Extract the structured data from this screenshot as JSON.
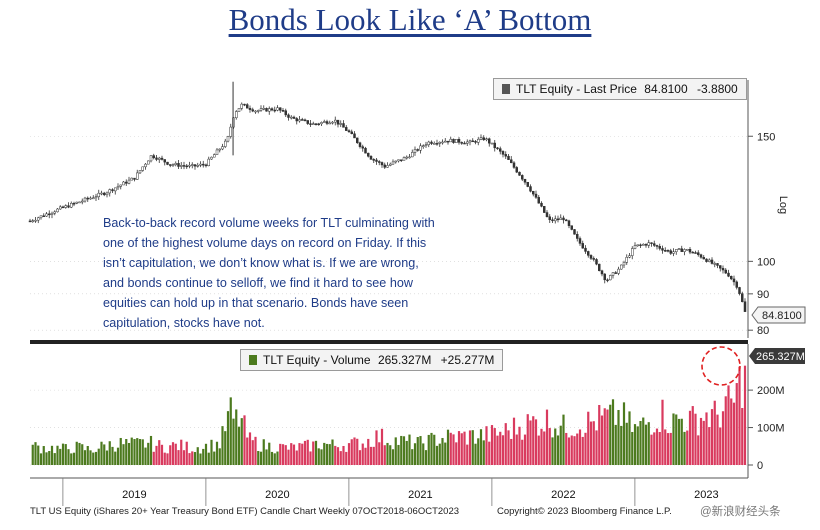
{
  "title": "Bonds Look Like ‘A’ Bottom",
  "annotation": "Back-to-back record volume weeks for TLT culminating with one of the highest volume days on record on Friday. If this isn’t capitulation, we don’t know what is. If we are wrong, and bonds continue to selloff, we find it hard to see how equities can hold up in that scenario. Bonds have seen capitulation, stocks have not.",
  "footer": "TLT US Equity (iShares 20+ Year Treasury Bond ETF) Candle Chart  Weekly 07OCT2018-06OCT2023",
  "copyright": "Copyright© 2023 Bloomberg Finance L.P.",
  "watermark": "@新浪财经头条",
  "colors": {
    "title": "#1f3c88",
    "up": "#4c7a1e",
    "down": "#d93a5e",
    "price": "#333333",
    "circle": "#e02020"
  },
  "chart_data": [
    {
      "type": "line",
      "subtype": "candlestick",
      "legend": {
        "label": "TLT Equity - Last Price",
        "last": "84.8100",
        "change": "-3.8800"
      },
      "y_axis_title": "Log",
      "y_scale": "log",
      "y_ticks": [
        80,
        90,
        100,
        150
      ],
      "last_value_label": "84.8100",
      "ylim": [
        78,
        180
      ],
      "x_labels": [
        "2019",
        "2020",
        "2021",
        "2022",
        "2023"
      ],
      "x_range": [
        2018.77,
        2023.77
      ],
      "series": [
        {
          "x": [
            2018.77,
            2018.95,
            2019.1,
            2019.3,
            2019.5,
            2019.62,
            2019.75,
            2019.9,
            2020.0,
            2020.15,
            2020.2,
            2020.25,
            2020.35,
            2020.5,
            2020.6,
            2020.75,
            2020.9,
            2021.0,
            2021.15,
            2021.25,
            2021.4,
            2021.55,
            2021.7,
            2021.85,
            2021.95,
            2022.1,
            2022.25,
            2022.4,
            2022.5,
            2022.6,
            2022.7,
            2022.8,
            2022.9,
            2023.0,
            2023.1,
            2023.25,
            2023.35,
            2023.45,
            2023.55,
            2023.65,
            2023.72,
            2023.77
          ],
          "y": [
            114,
            118,
            121,
            125,
            131,
            141,
            137,
            136,
            137,
            148,
            162,
            166,
            163,
            164,
            159,
            156,
            158,
            152,
            140,
            136,
            140,
            147,
            148,
            147,
            149,
            140,
            128,
            114,
            115,
            107,
            101,
            94,
            98,
            105,
            106,
            103,
            104,
            102,
            99,
            96,
            92,
            84.81
          ]
        }
      ]
    },
    {
      "type": "bar",
      "legend": {
        "label": "TLT Equity - Volume",
        "last": "265.327M",
        "change": "+25.277M"
      },
      "y_ticks": [
        "0",
        "100M",
        "200M"
      ],
      "last_value_label": "265.327M",
      "ylim": [
        0,
        300
      ],
      "x_range": [
        2018.77,
        2023.77
      ],
      "units": "M shares",
      "series": [
        {
          "x": [
            2018.8,
            2018.9,
            2019.0,
            2019.1,
            2019.2,
            2019.3,
            2019.4,
            2019.5,
            2019.6,
            2019.7,
            2019.8,
            2019.9,
            2020.0,
            2020.1,
            2020.17,
            2020.2,
            2020.24,
            2020.3,
            2020.4,
            2020.5,
            2020.6,
            2020.7,
            2020.8,
            2020.9,
            2021.0,
            2021.1,
            2021.2,
            2021.3,
            2021.4,
            2021.5,
            2021.6,
            2021.7,
            2021.8,
            2021.9,
            2022.0,
            2022.1,
            2022.2,
            2022.3,
            2022.4,
            2022.5,
            2022.6,
            2022.7,
            2022.8,
            2022.9,
            2022.97,
            2023.0,
            2023.1,
            2023.2,
            2023.25,
            2023.3,
            2023.4,
            2023.5,
            2023.55,
            2023.6,
            2023.65,
            2023.7,
            2023.74,
            2023.77
          ],
          "values": [
            52,
            48,
            45,
            50,
            42,
            55,
            60,
            58,
            62,
            50,
            55,
            48,
            52,
            60,
            150,
            120,
            135,
            70,
            55,
            50,
            48,
            52,
            60,
            55,
            58,
            62,
            80,
            70,
            65,
            60,
            72,
            78,
            80,
            82,
            85,
            95,
            110,
            120,
            125,
            105,
            115,
            120,
            135,
            140,
            110,
            100,
            120,
            145,
            115,
            130,
            125,
            140,
            135,
            150,
            165,
            180,
            240,
            265.327
          ]
        }
      ],
      "annotation": "dashed red circle around latest volume bar"
    }
  ]
}
